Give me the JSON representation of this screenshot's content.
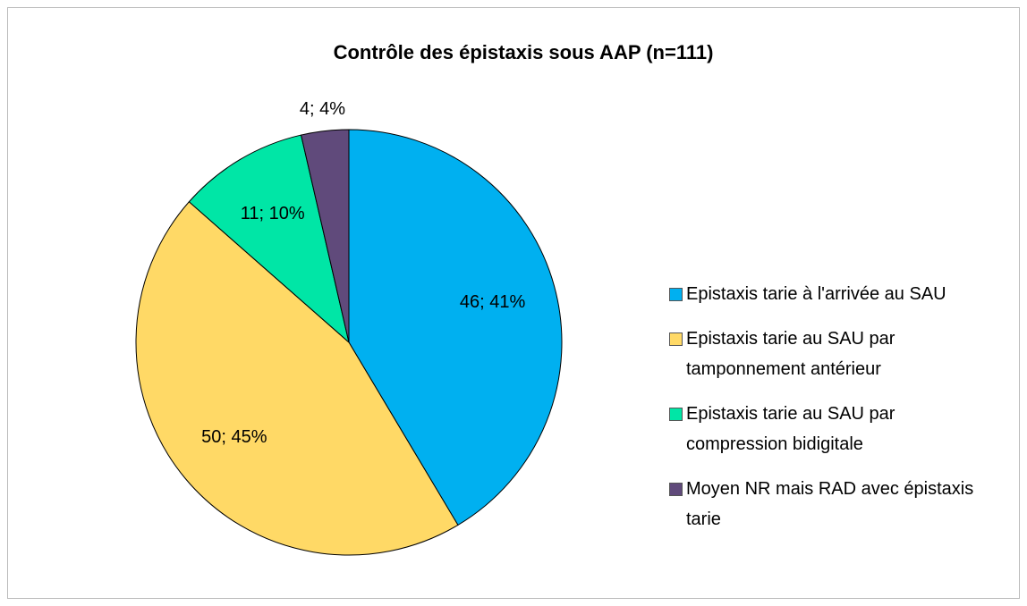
{
  "chart_data": {
    "type": "pie",
    "title": "Contrôle des épistaxis sous AAP (n=111)",
    "categories": [
      "Epistaxis tarie à l'arrivée au SAU",
      "Epistaxis tarie au SAU par tamponnement antérieur",
      "Epistaxis tarie au SAU par compression bidigitale",
      "Moyen NR mais RAD avec épistaxis tarie"
    ],
    "values": [
      46,
      50,
      11,
      4
    ],
    "value_labels": [
      "46; 41%",
      "50; 45%",
      "11; 10%",
      "4; 4%"
    ],
    "colors": [
      "#00b0f0",
      "#ffd966",
      "#00e6a6",
      "#604a7b"
    ],
    "legend": "right"
  }
}
